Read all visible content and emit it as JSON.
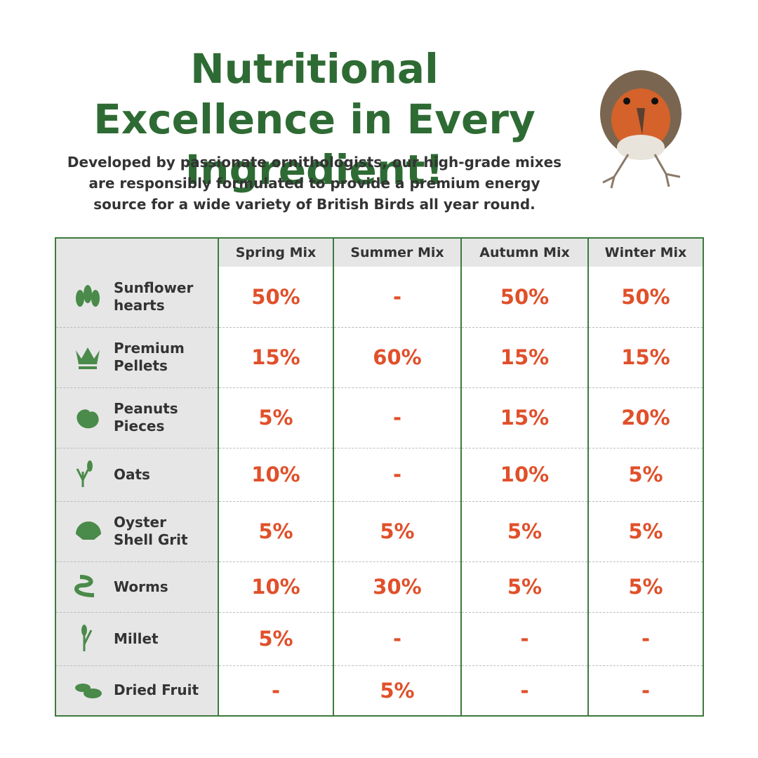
{
  "header": {
    "title": "Nutritional Excellence in Every Ingredient!",
    "subtitle": "Developed by passionate ornithologists, our high-grade mixes are responsibly formulated to provide a premium energy source for a wide variety of British Birds all year round."
  },
  "table": {
    "columns": [
      "Spring Mix",
      "Summer Mix",
      "Autumn Mix",
      "Winter Mix"
    ],
    "rows": [
      {
        "ingredient": "Sunflower hearts",
        "values": [
          "50%",
          "-",
          "50%",
          "50%"
        ]
      },
      {
        "ingredient": "Premium Pellets",
        "values": [
          "15%",
          "60%",
          "15%",
          "15%"
        ]
      },
      {
        "ingredient": "Peanuts Pieces",
        "values": [
          "5%",
          "-",
          "15%",
          "20%"
        ]
      },
      {
        "ingredient": "Oats",
        "values": [
          "10%",
          "-",
          "10%",
          "5%"
        ]
      },
      {
        "ingredient": "Oyster Shell Grit",
        "values": [
          "5%",
          "5%",
          "5%",
          "5%"
        ]
      },
      {
        "ingredient": "Worms",
        "values": [
          "10%",
          "30%",
          "5%",
          "5%"
        ]
      },
      {
        "ingredient": "Millet",
        "values": [
          "5%",
          "-",
          "-",
          "-"
        ]
      },
      {
        "ingredient": "Dried Fruit",
        "values": [
          "-",
          "5%",
          "-",
          "-"
        ]
      }
    ]
  }
}
